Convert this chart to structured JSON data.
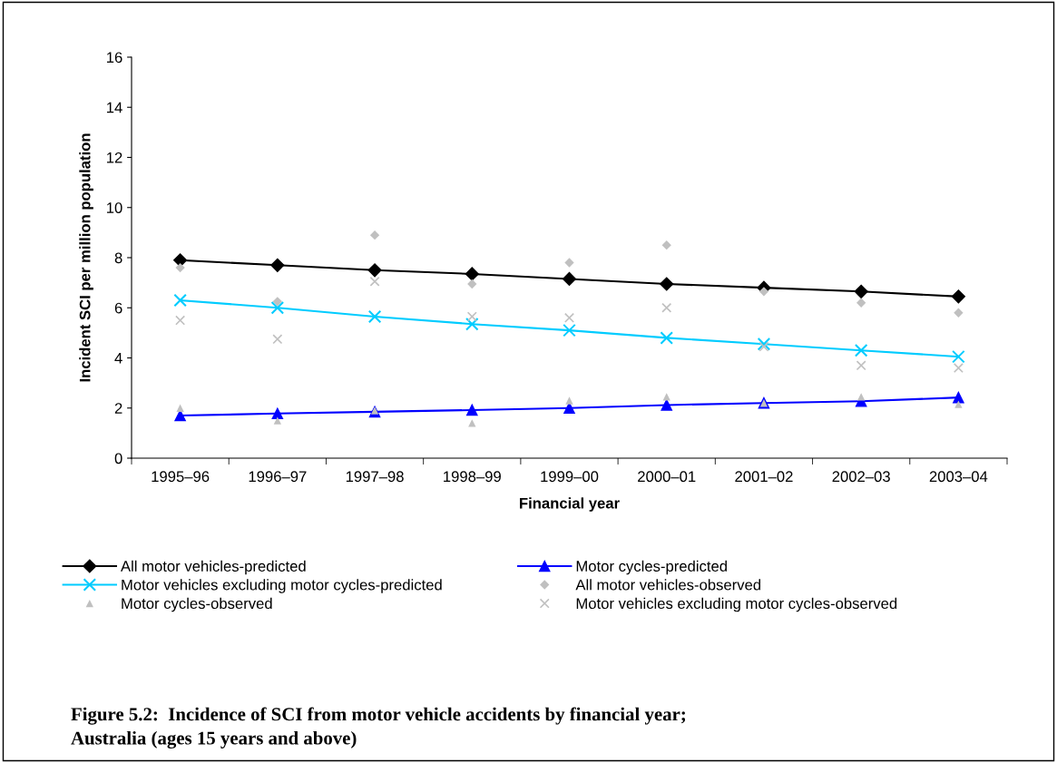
{
  "chart_data": {
    "type": "line",
    "title": "Figure 5.2:  Incidence of SCI from motor vehicle accidents by financial year;\nAustralia (ages 15 years and above)",
    "xlabel": "Financial year",
    "ylabel": "Incident SCI per million population",
    "categories": [
      "1995–96",
      "1996–97",
      "1997–98",
      "1998–99",
      "1999–00",
      "2000–01",
      "2001–02",
      "2002–03",
      "2003–04"
    ],
    "ylim": [
      0,
      16
    ],
    "yticks": [
      0,
      2,
      4,
      6,
      8,
      10,
      12,
      14,
      16
    ],
    "grid": false,
    "legend": "bottom",
    "series": [
      {
        "name": "All motor vehicles-predicted",
        "marker": "diamond",
        "color": "#000000",
        "values": [
          7.9,
          7.7,
          7.5,
          7.35,
          7.15,
          6.95,
          6.8,
          6.65,
          6.45
        ]
      },
      {
        "name": "Motor cycles-predicted",
        "marker": "triangle",
        "color": "#0000ff",
        "values": [
          1.7,
          1.78,
          1.85,
          1.92,
          2.0,
          2.12,
          2.2,
          2.27,
          2.42
        ]
      },
      {
        "name": "Motor vehicles excluding motor cycles-predicted",
        "marker": "cross",
        "color": "#00ccff",
        "values": [
          6.3,
          6.0,
          5.65,
          5.35,
          5.1,
          4.8,
          4.55,
          4.3,
          4.05
        ]
      },
      {
        "name": "All motor vehicles-observed",
        "type": "scatter",
        "marker": "diamond",
        "color": "#c0c0c0",
        "values": [
          7.6,
          6.25,
          8.9,
          6.95,
          7.8,
          8.5,
          6.65,
          6.2,
          5.8
        ]
      },
      {
        "name": "Motor cycles-observed",
        "type": "scatter",
        "marker": "triangle",
        "color": "#c0c0c0",
        "values": [
          2.0,
          1.5,
          1.9,
          1.4,
          2.3,
          2.45,
          2.2,
          2.45,
          2.15
        ]
      },
      {
        "name": "Motor vehicles excluding motor cycles-observed",
        "type": "scatter",
        "marker": "cross",
        "color": "#c0c0c0",
        "values": [
          5.5,
          4.75,
          7.05,
          5.65,
          5.6,
          6.0,
          4.45,
          3.7,
          3.6
        ]
      }
    ]
  }
}
